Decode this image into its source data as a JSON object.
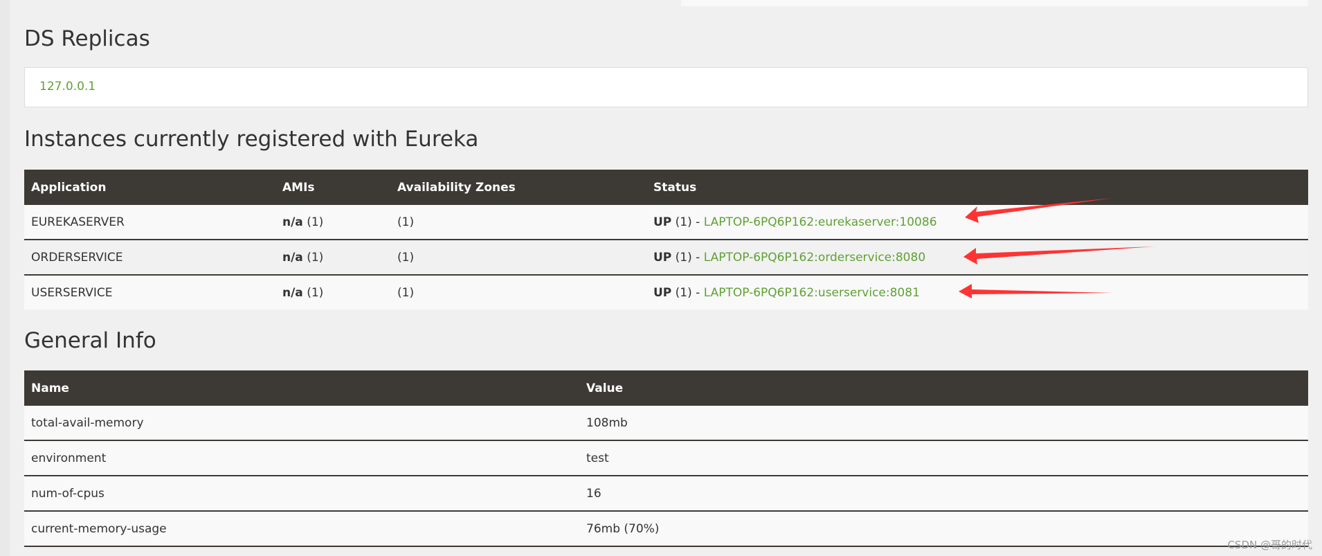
{
  "replicas": {
    "title": "DS Replicas",
    "items": [
      "127.0.0.1"
    ]
  },
  "instances": {
    "title": "Instances currently registered with Eureka",
    "columns": [
      "Application",
      "AMIs",
      "Availability Zones",
      "Status"
    ],
    "rows": [
      {
        "app": "EUREKASERVER",
        "ami_bold": "n/a",
        "ami_count": "(1)",
        "zones": "(1)",
        "status_bold": "UP",
        "status_count": "(1) -",
        "link": "LAPTOP-6PQ6P162:eurekaserver:10086"
      },
      {
        "app": "ORDERSERVICE",
        "ami_bold": "n/a",
        "ami_count": "(1)",
        "zones": "(1)",
        "status_bold": "UP",
        "status_count": "(1) -",
        "link": "LAPTOP-6PQ6P162:orderservice:8080"
      },
      {
        "app": "USERSERVICE",
        "ami_bold": "n/a",
        "ami_count": "(1)",
        "zones": "(1)",
        "status_bold": "UP",
        "status_count": "(1) -",
        "link": "LAPTOP-6PQ6P162:userservice:8081"
      }
    ]
  },
  "general": {
    "title": "General Info",
    "columns": [
      "Name",
      "Value"
    ],
    "rows": [
      {
        "name": "total-avail-memory",
        "value": "108mb"
      },
      {
        "name": "environment",
        "value": "test"
      },
      {
        "name": "num-of-cpus",
        "value": "16"
      },
      {
        "name": "current-memory-usage",
        "value": "76mb (70%)"
      }
    ]
  },
  "watermark": "CSDN @哥的时代",
  "colors": {
    "header": "#3d3935",
    "link": "#5fa134",
    "annotation_arrow": "#ff3333"
  }
}
